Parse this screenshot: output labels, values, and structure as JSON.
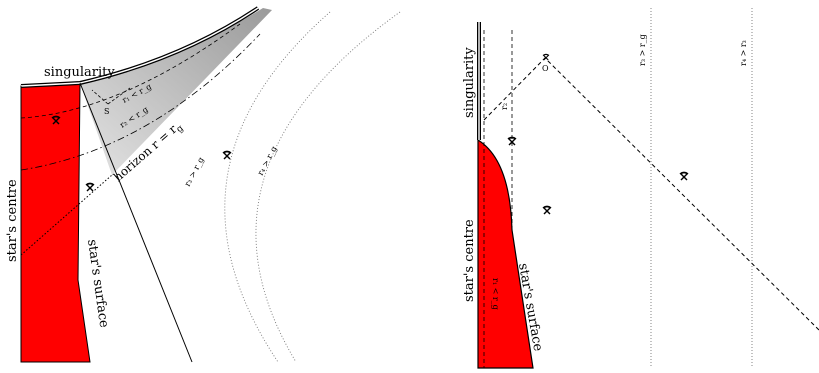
{
  "left_diagram": {
    "singularity_label": "singularity",
    "star_centre_label": "star's centre",
    "star_surface_label": "star's surface",
    "horizon_label": "horizon r = r",
    "horizon_subscript": "g",
    "shell_labels": {
      "r1": "r₁ < r_g",
      "r2": "r₂ < r_g",
      "r3": "r₃ > r_g",
      "r4": "r₄ > r_g"
    },
    "event_label": "S"
  },
  "right_diagram": {
    "singularity_label": "singularity",
    "star_centre_label": "star's centre",
    "star_surface_label": "star's surface",
    "shell_labels": {
      "r1": "r₁ < r_g",
      "r2": "r₂",
      "r3": "r₃ > r_g",
      "r4": "r₄ > r₃"
    },
    "event_label": "O"
  },
  "colors": {
    "star_fill": "#ff0000",
    "trapped_region_dark": "#9a9a9a",
    "trapped_region_light": "#e4e4e4",
    "line": "#000000"
  },
  "icons": {
    "observer_marker": "pickaxe-icon"
  }
}
